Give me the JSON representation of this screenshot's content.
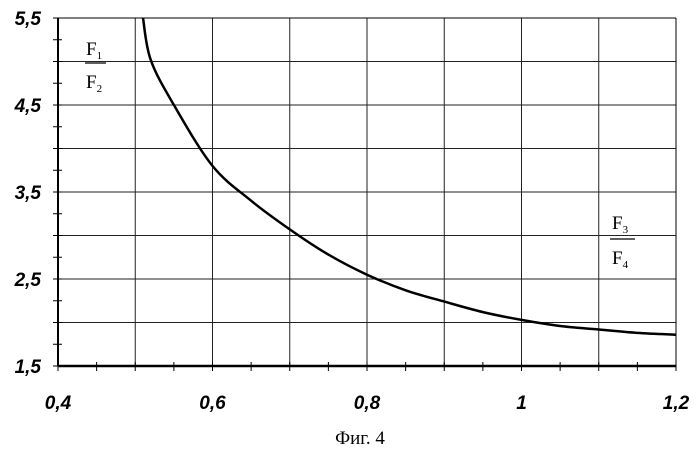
{
  "chart_data": {
    "type": "line",
    "xlim": [
      0.4,
      1.2
    ],
    "ylim": [
      1.5,
      5.5
    ],
    "x_ticks": [
      0.4,
      0.6,
      0.8,
      1,
      1.2
    ],
    "x_tick_labels": [
      "0,4",
      "0,6",
      "0,8",
      "1",
      "1,2"
    ],
    "y_ticks": [
      1.5,
      2.5,
      3.5,
      4.5,
      5.5
    ],
    "y_tick_labels": [
      "1,5",
      "2,5",
      "3,5",
      "4,5",
      "5,5"
    ],
    "grid": true,
    "ylabel": {
      "num": "F",
      "num_sub": "1",
      "den": "F",
      "den_sub": "2"
    },
    "xlabel": {
      "num": "F",
      "num_sub": "3",
      "den": "F",
      "den_sub": "4"
    },
    "caption": "Фиг. 4",
    "series": [
      {
        "x": [
          0.51,
          0.52,
          0.55,
          0.6,
          0.65,
          0.7,
          0.75,
          0.8,
          0.85,
          0.9,
          0.95,
          1.0,
          1.05,
          1.1,
          1.15,
          1.2
        ],
        "y": [
          5.5,
          5.02,
          4.5,
          3.8,
          3.4,
          3.07,
          2.78,
          2.55,
          2.37,
          2.24,
          2.12,
          2.03,
          1.96,
          1.92,
          1.88,
          1.86
        ]
      }
    ]
  }
}
